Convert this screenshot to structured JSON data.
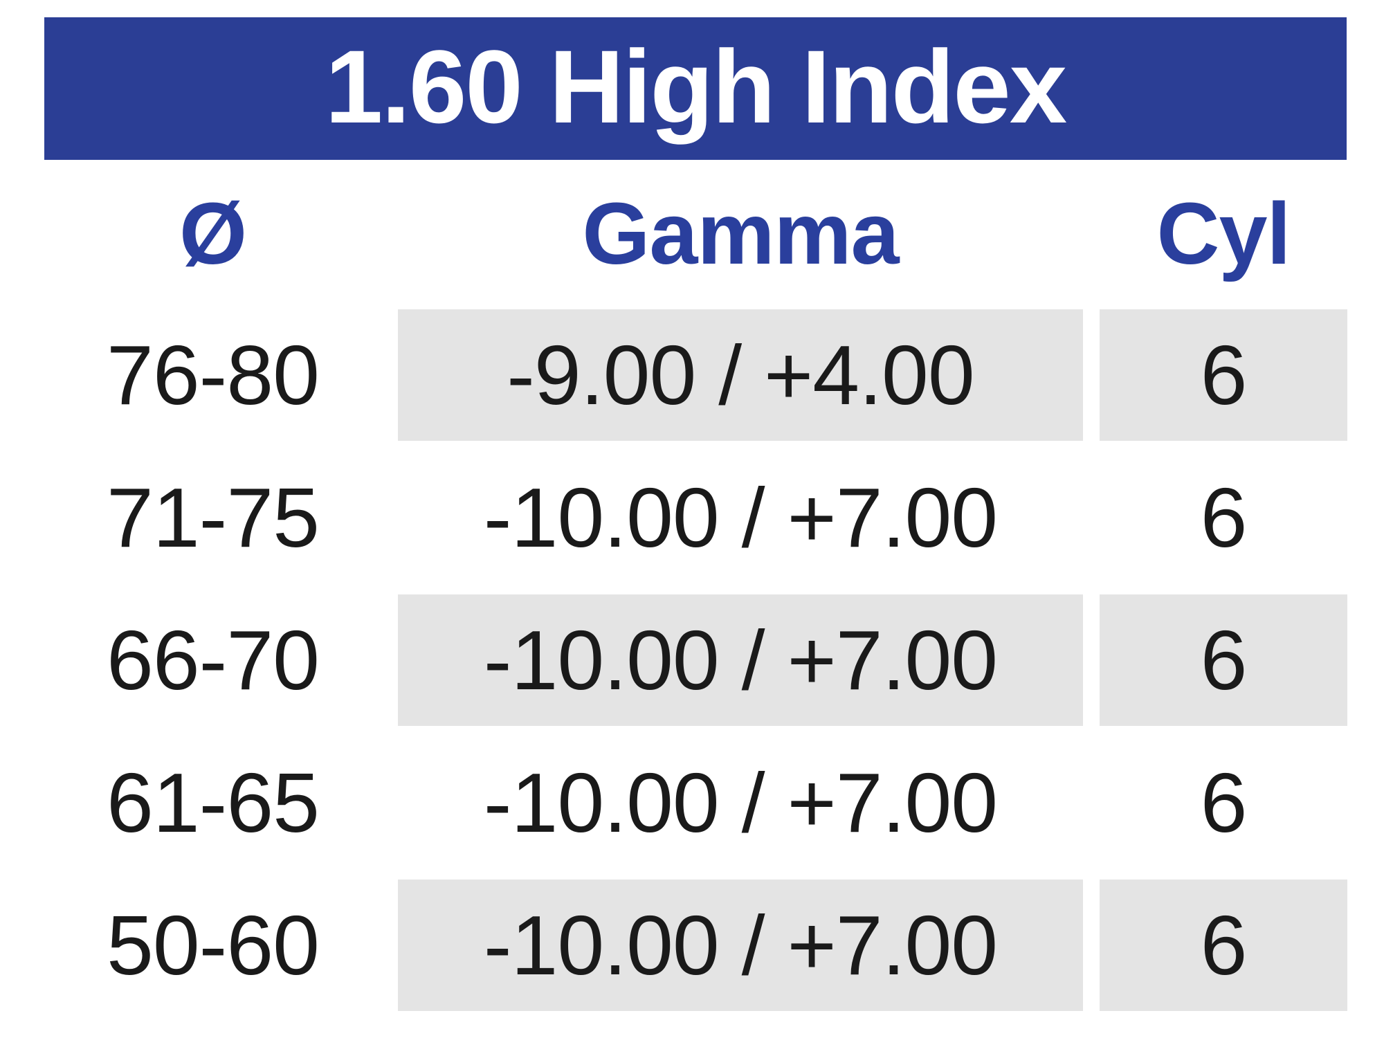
{
  "colors": {
    "banner_bg": "#2b3e95",
    "banner_text": "#ffffff",
    "header_text": "#2a3f9d",
    "row_shade": "#e4e4e4",
    "data_text": "#1a1a1a",
    "page_bg": "#ffffff"
  },
  "table": {
    "title": "1.60 High Index",
    "columns": [
      {
        "label": "Ø"
      },
      {
        "label": "Gamma"
      },
      {
        "label": "Cyl"
      }
    ],
    "rows": [
      {
        "diameter": "76-80",
        "gamma": "-9.00 / +4.00",
        "cyl": "6"
      },
      {
        "diameter": "71-75",
        "gamma": "-10.00 / +7.00",
        "cyl": "6"
      },
      {
        "diameter": "66-70",
        "gamma": "-10.00 / +7.00",
        "cyl": "6"
      },
      {
        "diameter": "61-65",
        "gamma": "-10.00 / +7.00",
        "cyl": "6"
      },
      {
        "diameter": "50-60",
        "gamma": "-10.00 / +7.00",
        "cyl": "6"
      }
    ]
  }
}
